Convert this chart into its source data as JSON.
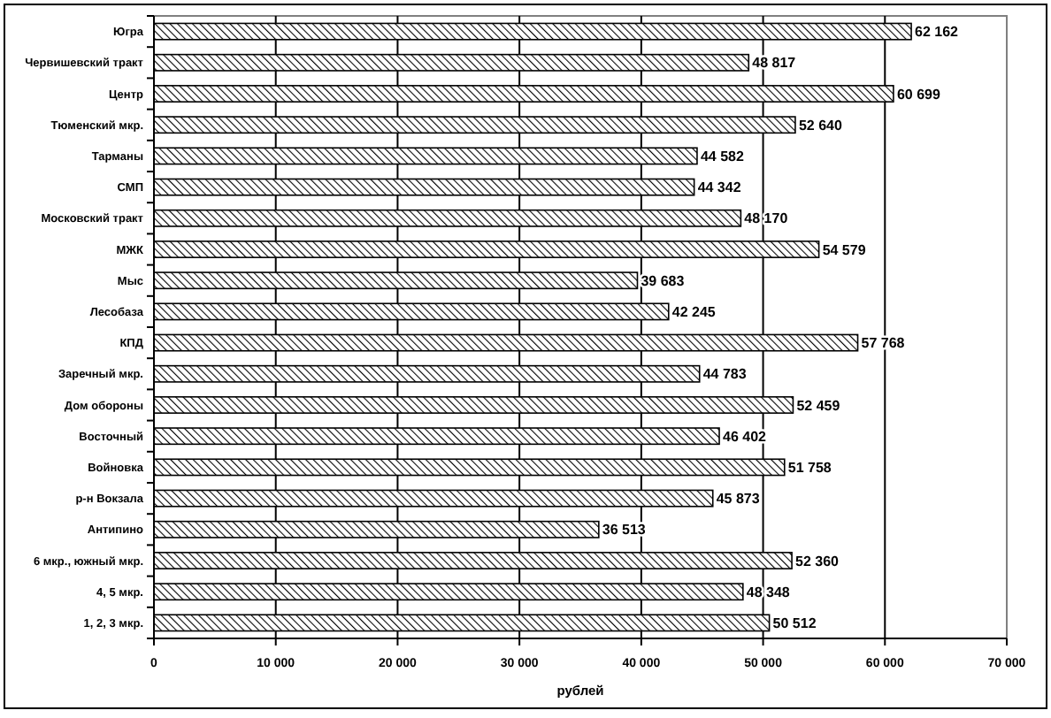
{
  "chart_data": {
    "type": "bar",
    "orientation": "horizontal",
    "xlabel": "рублей",
    "categories": [
      "Югра",
      "Червишевский тракт",
      "Центр",
      "Тюменский мкр.",
      "Тарманы",
      "СМП",
      "Московский тракт",
      "МЖК",
      "Мыс",
      "Лесобаза",
      "КПД",
      "Заречный мкр.",
      "Дом обороны",
      "Восточный",
      "Войновка",
      "р-н Вокзала",
      "Антипино",
      "6 мкр., южный мкр.",
      "4, 5 мкр.",
      "1, 2, 3 мкр."
    ],
    "values": [
      62162,
      48817,
      60699,
      52640,
      44582,
      44342,
      48170,
      54579,
      39683,
      42245,
      57768,
      44783,
      52459,
      46402,
      51758,
      45873,
      36513,
      52360,
      48348,
      50512
    ],
    "value_labels": [
      "62 162",
      "48 817",
      "60 699",
      "52 640",
      "44 582",
      "44 342",
      "48 170",
      "54 579",
      "39 683",
      "42 245",
      "57 768",
      "44 783",
      "52 459",
      "46 402",
      "51 758",
      "45 873",
      "36 513",
      "52 360",
      "48 348",
      "50 512"
    ],
    "color": "#000000",
    "xlim": [
      0,
      70000
    ],
    "xticks": [
      0,
      {
        "value": 10000,
        "label": "10 000"
      },
      {
        "value": 20000,
        "label": "20 000"
      },
      {
        "value": 30000,
        "label": "30 000"
      },
      {
        "value": 40000,
        "label": "40 000"
      },
      {
        "value": 50000,
        "label": "50 000"
      },
      {
        "value": 60000,
        "label": "60 000"
      },
      {
        "value": 70000,
        "label": "70 000"
      }
    ],
    "grid": "x"
  }
}
